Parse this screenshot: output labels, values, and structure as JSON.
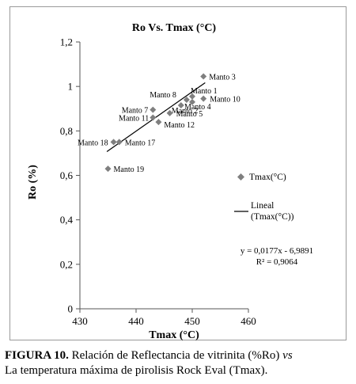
{
  "chart_data": {
    "type": "scatter",
    "title": "Ro Vs. Tmax (°C)",
    "xlabel": "Tmax (°C)",
    "ylabel": "Ro (%)",
    "xlim": [
      430,
      460
    ],
    "ylim": [
      0,
      1.2
    ],
    "x_ticks": [
      "430",
      "440",
      "450",
      "460"
    ],
    "y_ticks": [
      "0",
      "0,2",
      "0,4",
      "0,6",
      "0,8",
      "1",
      "1,2"
    ],
    "grid": false,
    "legend_position": "right",
    "series": [
      {
        "name": "Tmax(°C)",
        "marker": "diamond",
        "color": "#7f7f7f",
        "points": [
          {
            "label": "Manto 3",
            "x": 452,
            "y": 1.045
          },
          {
            "label": "Manto 1",
            "x": 450,
            "y": 0.955
          },
          {
            "label": "Manto 10",
            "x": 452,
            "y": 0.945
          },
          {
            "label": "Manto 8",
            "x": 449,
            "y": 0.94
          },
          {
            "label": "Manto 4",
            "x": 450,
            "y": 0.93
          },
          {
            "label": "Manto 2",
            "x": 448,
            "y": 0.915
          },
          {
            "label": "Manto 7",
            "x": 443,
            "y": 0.895
          },
          {
            "label": "Manto 5",
            "x": 446,
            "y": 0.88
          },
          {
            "label": "Manto 11",
            "x": 443,
            "y": 0.86
          },
          {
            "label": "Manto 12",
            "x": 444,
            "y": 0.84
          },
          {
            "label": "Manto 17",
            "x": 437,
            "y": 0.75
          },
          {
            "label": "Manto 18",
            "x": 436,
            "y": 0.75
          },
          {
            "label": "Manto 19",
            "x": 435,
            "y": 0.63
          }
        ]
      },
      {
        "name": "Lineal (Tmax(°C))",
        "type": "line",
        "color": "#000000",
        "slope": 0.0177,
        "intercept": -6.9891,
        "x_range": [
          434.8,
          452.3
        ]
      }
    ],
    "legend": {
      "scatter_label": "Tmax(°C)",
      "line_label_1": "Lineal",
      "line_label_2": "(Tmax(°C))"
    },
    "annotations": {
      "equation": "y = 0,0177x - 6,9891",
      "r2": "R² = 0,9064"
    }
  },
  "caption": {
    "label": "FIGURA 10.",
    "text_1": " Relación de Reflectancia de vitrinita (%Ro) ",
    "italic": "vs",
    "text_2": "La temperatura máxima de pirolisis Rock Eval (Tmax)."
  }
}
